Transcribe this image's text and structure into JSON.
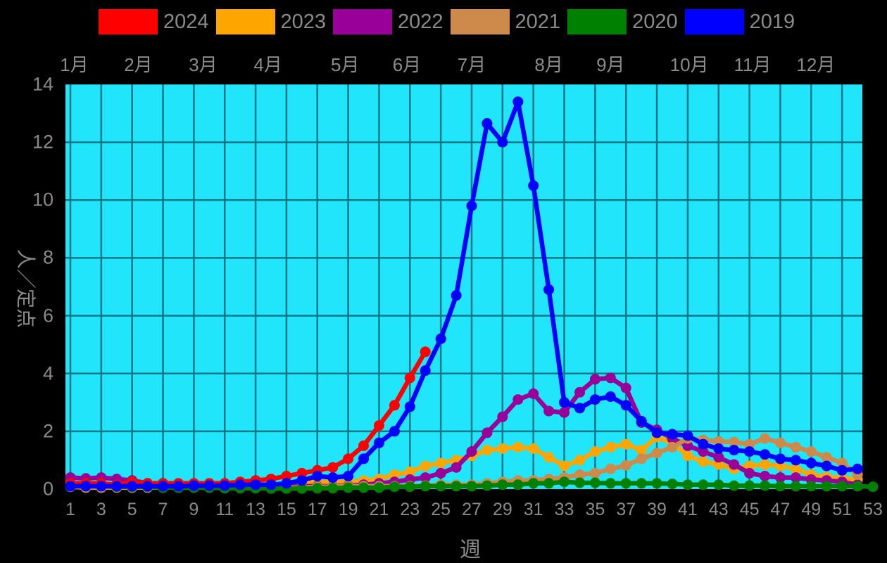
{
  "window": {
    "background": "#000000",
    "label_color": "#8b8b8b"
  },
  "legend": {
    "items": [
      {
        "label": "2024",
        "color": "#ff0000"
      },
      {
        "label": "2023",
        "color": "#ffa500"
      },
      {
        "label": "2022",
        "color": "#990099"
      },
      {
        "label": "2021",
        "color": "#cd8a4a"
      },
      {
        "label": "2020",
        "color": "#008000"
      },
      {
        "label": "2019",
        "color": "#0000ff"
      }
    ]
  },
  "top_axis": {
    "months": [
      {
        "label": "1月",
        "week": 1.25
      },
      {
        "label": "2月",
        "week": 5.4
      },
      {
        "label": "3月",
        "week": 9.6
      },
      {
        "label": "4月",
        "week": 13.8
      },
      {
        "label": "5月",
        "week": 18.8
      },
      {
        "label": "6月",
        "week": 22.8
      },
      {
        "label": "7月",
        "week": 27.0
      },
      {
        "label": "8月",
        "week": 32.0
      },
      {
        "label": "9月",
        "week": 36.0
      },
      {
        "label": "10月",
        "week": 41.1
      },
      {
        "label": "11月",
        "week": 45.2
      },
      {
        "label": "12月",
        "week": 49.3
      }
    ]
  },
  "y_axis": {
    "title": "人／定点",
    "ticks": [
      0,
      2,
      4,
      6,
      8,
      10,
      12,
      14
    ],
    "max": 14
  },
  "x_axis": {
    "title": "週",
    "ticks": [
      1,
      3,
      5,
      7,
      9,
      11,
      13,
      15,
      17,
      19,
      21,
      23,
      25,
      27,
      29,
      31,
      33,
      35,
      37,
      39,
      41,
      43,
      45,
      47,
      49,
      51,
      53
    ],
    "max_week": 53
  },
  "chart_data": {
    "type": "line",
    "title": "",
    "xlabel": "週",
    "ylabel": "人／定点",
    "x_unit": "ISO week number",
    "x_range": [
      1,
      53
    ],
    "ylim": [
      0,
      14
    ],
    "grid": "on",
    "grid_every_x_weeks": 2,
    "grid_every_y_units": 2,
    "plot_bg": "#21e5fa",
    "grid_color": "#0d7787",
    "legend_position": "top",
    "draw_order": [
      "2023",
      "2022",
      "2021",
      "2020",
      "2024",
      "2019"
    ],
    "series": [
      {
        "name": "2024",
        "color": "#ff0000",
        "start_week": 1,
        "values": [
          0.2,
          0.2,
          0.2,
          0.15,
          0.25,
          0.2,
          0.2,
          0.2,
          0.2,
          0.2,
          0.2,
          0.25,
          0.3,
          0.35,
          0.45,
          0.55,
          0.65,
          0.75,
          1.05,
          1.5,
          2.2,
          2.9,
          3.85,
          4.75
        ]
      },
      {
        "name": "2023",
        "color": "#ffa500",
        "start_week": 1,
        "values": [
          0.1,
          0.1,
          0.1,
          0.1,
          0.1,
          0.1,
          0.1,
          0.1,
          0.1,
          0.1,
          0.1,
          0.1,
          0.15,
          0.15,
          0.15,
          0.2,
          0.25,
          0.25,
          0.25,
          0.3,
          0.35,
          0.5,
          0.6,
          0.8,
          0.9,
          1.0,
          1.15,
          1.35,
          1.4,
          1.45,
          1.4,
          1.1,
          0.8,
          1.0,
          1.3,
          1.45,
          1.55,
          1.35,
          1.8,
          1.6,
          1.15,
          0.95,
          0.85,
          0.7,
          0.8,
          0.85,
          0.8,
          0.7,
          0.5,
          0.42,
          0.38,
          0.33
        ]
      },
      {
        "name": "2022",
        "color": "#990099",
        "start_week": 1,
        "values": [
          0.4,
          0.37,
          0.4,
          0.35,
          0.3,
          0.2,
          0.2,
          0.15,
          0.15,
          0.15,
          0.15,
          0.15,
          0.15,
          0.15,
          0.1,
          0.1,
          0.1,
          0.1,
          0.12,
          0.15,
          0.2,
          0.25,
          0.33,
          0.4,
          0.55,
          0.75,
          1.3,
          1.95,
          2.5,
          3.1,
          3.3,
          2.7,
          2.65,
          3.35,
          3.8,
          3.85,
          3.5,
          2.3,
          2.05,
          1.75,
          1.5,
          1.3,
          1.1,
          0.85,
          0.55,
          0.45,
          0.4,
          0.4,
          0.33,
          0.3,
          0.25,
          0.15
        ]
      },
      {
        "name": "2021",
        "color": "#cd8a4a",
        "start_week": 1,
        "values": [
          0.08,
          0.05,
          0.05,
          0.05,
          0.05,
          0.05,
          0.05,
          0.05,
          0.05,
          0.05,
          0.05,
          0.05,
          0.05,
          0.05,
          0.05,
          0.05,
          0.08,
          0.08,
          0.1,
          0.1,
          0.1,
          0.1,
          0.1,
          0.12,
          0.15,
          0.15,
          0.15,
          0.2,
          0.25,
          0.3,
          0.3,
          0.35,
          0.4,
          0.5,
          0.55,
          0.7,
          0.82,
          1.05,
          1.25,
          1.45,
          1.75,
          1.7,
          1.65,
          1.63,
          1.55,
          1.75,
          1.6,
          1.45,
          1.3,
          1.1,
          0.9,
          0.5
        ]
      },
      {
        "name": "2020",
        "color": "#008000",
        "start_week": 1,
        "values": [
          0.1,
          0.1,
          0.1,
          0.08,
          0.08,
          0.08,
          0.05,
          0.05,
          0.05,
          0.05,
          0.03,
          0.03,
          0.03,
          0.02,
          0.02,
          0.02,
          0.03,
          0.03,
          0.05,
          0.05,
          0.05,
          0.08,
          0.08,
          0.1,
          0.1,
          0.1,
          0.1,
          0.12,
          0.15,
          0.15,
          0.2,
          0.2,
          0.25,
          0.22,
          0.22,
          0.2,
          0.2,
          0.2,
          0.2,
          0.18,
          0.15,
          0.15,
          0.15,
          0.12,
          0.12,
          0.12,
          0.1,
          0.1,
          0.1,
          0.1,
          0.1,
          0.1,
          0.08
        ]
      },
      {
        "name": "2019",
        "color": "#0000ff",
        "start_week": 1,
        "values": [
          0.1,
          0.1,
          0.1,
          0.1,
          0.1,
          0.1,
          0.1,
          0.1,
          0.12,
          0.12,
          0.12,
          0.15,
          0.15,
          0.15,
          0.2,
          0.3,
          0.45,
          0.4,
          0.45,
          1.05,
          1.6,
          2.0,
          2.85,
          4.1,
          5.2,
          6.7,
          9.8,
          12.65,
          12.0,
          13.4,
          10.5,
          6.9,
          3.0,
          2.8,
          3.1,
          3.2,
          2.9,
          2.35,
          1.95,
          1.9,
          1.85,
          1.55,
          1.4,
          1.35,
          1.3,
          1.2,
          1.05,
          1.0,
          0.9,
          0.8,
          0.65,
          0.7
        ]
      }
    ]
  }
}
